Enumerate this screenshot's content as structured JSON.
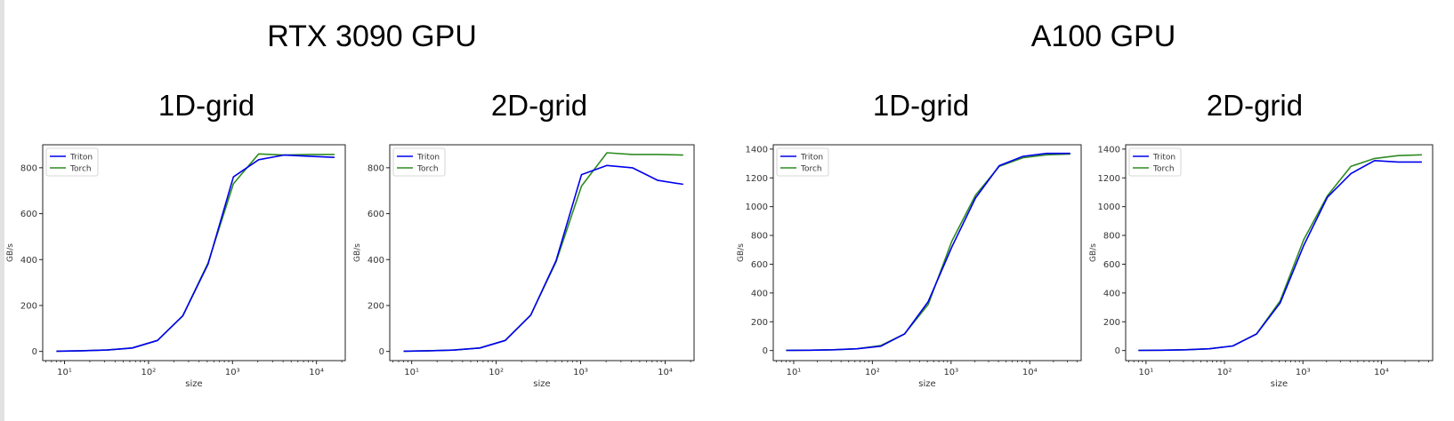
{
  "gpu_titles": [
    "RTX 3090 GPU",
    "A100 GPU"
  ],
  "chart_data": [
    {
      "type": "line",
      "gpu": "RTX 3090 GPU",
      "title": "1D-grid",
      "xlabel": "size",
      "ylabel": "GB/s",
      "xscale": "log",
      "xlim": [
        5.5,
        22000
      ],
      "ylim": [
        -40,
        900
      ],
      "xticks": [
        10,
        100,
        1000,
        10000
      ],
      "xtick_labels": [
        "10¹",
        "10²",
        "10³",
        "10⁴"
      ],
      "yticks": [
        0,
        200,
        400,
        600,
        800
      ],
      "legend_position": "upper-left",
      "x": [
        8,
        16,
        32,
        64,
        128,
        256,
        512,
        1024,
        2048,
        4096,
        8192,
        16384
      ],
      "series": [
        {
          "name": "Triton",
          "color": "#0000ee",
          "values": [
            1,
            3,
            6,
            15,
            48,
            155,
            380,
            760,
            835,
            855,
            850,
            845
          ]
        },
        {
          "name": "Torch",
          "color": "#2e8b22",
          "values": [
            1,
            3,
            6,
            15,
            48,
            155,
            385,
            730,
            860,
            855,
            858,
            858
          ]
        }
      ]
    },
    {
      "type": "line",
      "gpu": "RTX 3090 GPU",
      "title": "2D-grid",
      "xlabel": "size",
      "ylabel": "GB/s",
      "xscale": "log",
      "xlim": [
        5.5,
        22000
      ],
      "ylim": [
        -40,
        900
      ],
      "xticks": [
        10,
        100,
        1000,
        10000
      ],
      "xtick_labels": [
        "10¹",
        "10²",
        "10³",
        "10⁴"
      ],
      "yticks": [
        0,
        200,
        400,
        600,
        800
      ],
      "legend_position": "upper-left",
      "x": [
        8,
        16,
        32,
        64,
        128,
        256,
        512,
        1024,
        2048,
        4096,
        8192,
        16384
      ],
      "series": [
        {
          "name": "Triton",
          "color": "#0000ee",
          "values": [
            1,
            3,
            6,
            15,
            48,
            158,
            395,
            770,
            810,
            800,
            745,
            728
          ]
        },
        {
          "name": "Torch",
          "color": "#2e8b22",
          "values": [
            1,
            3,
            6,
            15,
            48,
            158,
            390,
            720,
            865,
            858,
            858,
            855
          ]
        }
      ]
    },
    {
      "type": "line",
      "gpu": "A100 GPU",
      "title": "1D-grid",
      "xlabel": "size",
      "ylabel": "GB/s",
      "xscale": "log",
      "xlim": [
        5.5,
        45000
      ],
      "ylim": [
        -70,
        1430
      ],
      "xticks": [
        10,
        100,
        1000,
        10000
      ],
      "xtick_labels": [
        "10¹",
        "10²",
        "10³",
        "10⁴"
      ],
      "yticks": [
        0,
        200,
        400,
        600,
        800,
        1000,
        1200,
        1400
      ],
      "legend_position": "upper-left",
      "x": [
        8,
        16,
        32,
        64,
        128,
        256,
        512,
        1024,
        2048,
        4096,
        8192,
        16384,
        32768
      ],
      "series": [
        {
          "name": "Triton",
          "color": "#0000ee",
          "values": [
            1,
            2,
            5,
            12,
            30,
            115,
            340,
            720,
            1060,
            1285,
            1350,
            1370,
            1370
          ]
        },
        {
          "name": "Torch",
          "color": "#2e8b22",
          "values": [
            1,
            2,
            5,
            12,
            35,
            115,
            320,
            760,
            1080,
            1280,
            1340,
            1360,
            1365
          ]
        }
      ]
    },
    {
      "type": "line",
      "gpu": "A100 GPU",
      "title": "2D-grid",
      "xlabel": "size",
      "ylabel": "GB/s",
      "xscale": "log",
      "xlim": [
        5.5,
        45000
      ],
      "ylim": [
        -70,
        1430
      ],
      "xticks": [
        10,
        100,
        1000,
        10000
      ],
      "xtick_labels": [
        "10¹",
        "10²",
        "10³",
        "10⁴"
      ],
      "yticks": [
        0,
        200,
        400,
        600,
        800,
        1000,
        1200,
        1400
      ],
      "legend_position": "upper-left",
      "x": [
        8,
        16,
        32,
        64,
        128,
        256,
        512,
        1024,
        2048,
        4096,
        8192,
        16384,
        32768
      ],
      "series": [
        {
          "name": "Triton",
          "color": "#0000ee",
          "values": [
            1,
            2,
            5,
            12,
            32,
            115,
            330,
            730,
            1065,
            1230,
            1320,
            1310,
            1310
          ]
        },
        {
          "name": "Torch",
          "color": "#2e8b22",
          "values": [
            1,
            2,
            5,
            12,
            32,
            115,
            345,
            770,
            1075,
            1280,
            1335,
            1355,
            1360
          ]
        }
      ]
    }
  ]
}
